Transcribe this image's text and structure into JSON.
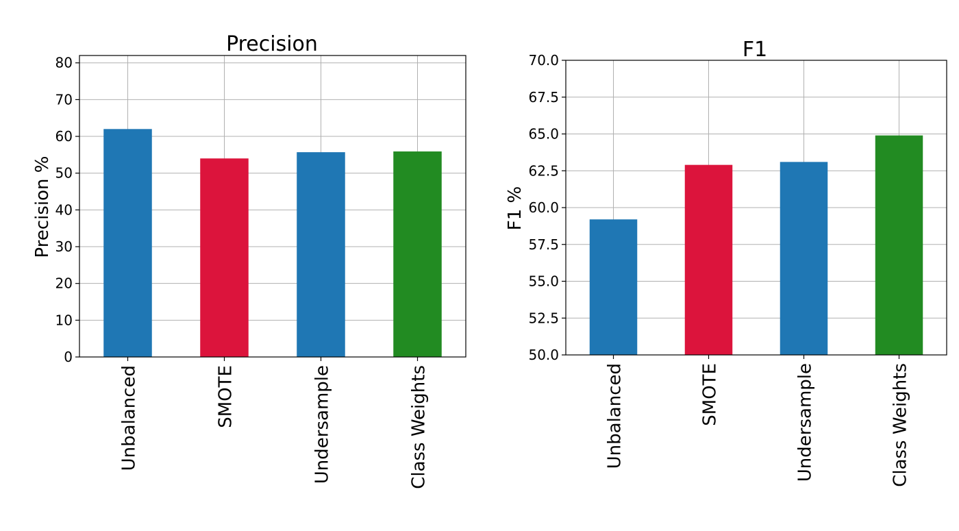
{
  "chart_data": [
    {
      "type": "bar",
      "title": "Precision",
      "ylabel": "Precision %",
      "xlabel": "",
      "categories": [
        "Unbalanced",
        "SMOTE",
        "Undersample",
        "Class Weights"
      ],
      "values": [
        62.0,
        54.0,
        55.7,
        55.9
      ],
      "colors": [
        "#1f77b4",
        "#dc143c",
        "#1f77b4",
        "#228b22"
      ],
      "ylim": [
        0,
        82
      ],
      "yticks": [
        0,
        10,
        20,
        30,
        40,
        50,
        60,
        70,
        80
      ],
      "ytick_labels": [
        "0",
        "10",
        "20",
        "30",
        "40",
        "50",
        "60",
        "70",
        "80"
      ],
      "grid": true
    },
    {
      "type": "bar",
      "title": "F1",
      "ylabel": "F1 %",
      "xlabel": "",
      "categories": [
        "Unbalanced",
        "SMOTE",
        "Undersample",
        "Class Weights"
      ],
      "values": [
        59.2,
        62.9,
        63.1,
        64.9
      ],
      "colors": [
        "#1f77b4",
        "#dc143c",
        "#1f77b4",
        "#228b22"
      ],
      "ylim": [
        50,
        70
      ],
      "yticks": [
        50,
        52.5,
        55,
        57.5,
        60,
        62.5,
        65,
        67.5,
        70
      ],
      "ytick_labels": [
        "50.0",
        "52.5",
        "55.0",
        "57.5",
        "60.0",
        "62.5",
        "65.0",
        "67.5",
        "70.0"
      ],
      "grid": true
    }
  ]
}
